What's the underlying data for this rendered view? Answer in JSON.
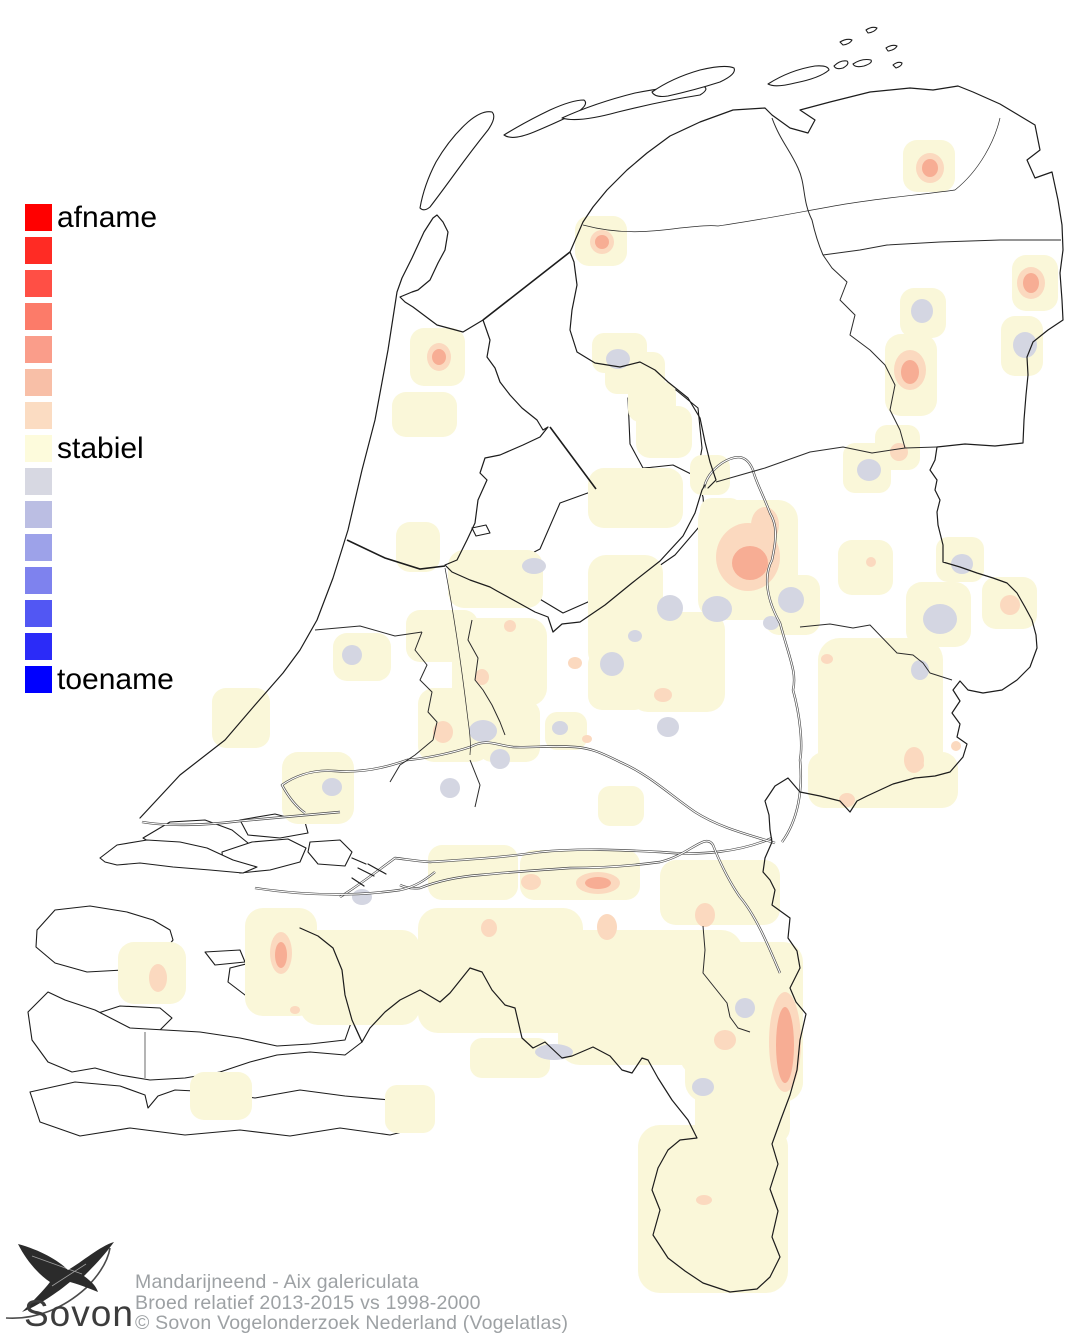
{
  "legend": {
    "decrease_label": "afname",
    "stable_label": "stabiel",
    "increase_label": "toename",
    "swatches": [
      "#FF0000",
      "#FF2B24",
      "#FF4F45",
      "#FC7B69",
      "#FA9D8A",
      "#F8BFA7",
      "#FBDCC2",
      "#FDFBDC",
      "#D7D8E2",
      "#BBBEE3",
      "#9DA2E9",
      "#7E82EE",
      "#5257F3",
      "#2B2BF8",
      "#0000FF"
    ]
  },
  "footer": {
    "species": "Mandarijneend - Aix galericulata",
    "dataset": "Broed relatief 2013-2015 vs 1998-2000",
    "copyright": "© Sovon Vogelonderzoek Nederland (Vogelatlas)",
    "logo_text": "Sovon"
  },
  "colors": {
    "stable_fill": "#FAF7D9",
    "decrease_light": "#FBD9BF",
    "decrease_mid": "#F7AD94",
    "increase_light": "#D4D6E2",
    "coast": "#1C1C1C",
    "border": "#2B2B2B",
    "river": "#4A4A4A",
    "footer_text": "#9DA1A4",
    "legend_label": "#000000",
    "logo_ink": "#3C3C3C"
  }
}
